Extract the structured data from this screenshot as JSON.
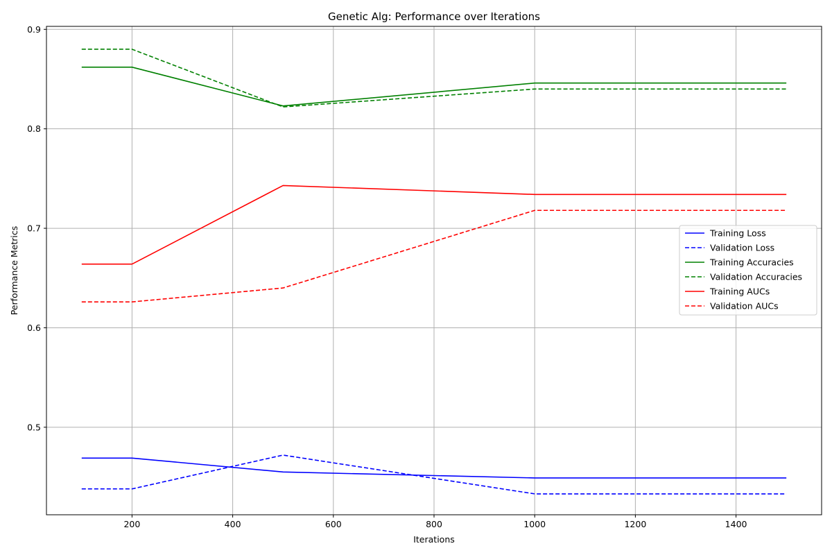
{
  "chart_data": {
    "type": "line",
    "title": "Genetic Alg: Performance over Iterations",
    "xlabel": "Iterations",
    "ylabel": "Performance Metrics",
    "xlim": [
      30,
      1570
    ],
    "ylim": [
      0.412,
      0.903
    ],
    "xticks": [
      200,
      400,
      600,
      800,
      1000,
      1200,
      1400
    ],
    "yticks": [
      0.5,
      0.6,
      0.7,
      0.8,
      0.9
    ],
    "grid": true,
    "legend_position": "center-right",
    "x": [
      100,
      200,
      500,
      1000,
      1500
    ],
    "series": [
      {
        "name": "Training Loss",
        "color": "#0000ff",
        "dash": "solid",
        "values": [
          0.469,
          0.469,
          0.455,
          0.449,
          0.449
        ]
      },
      {
        "name": "Validation Loss",
        "color": "#0000ff",
        "dash": "dashed",
        "values": [
          0.438,
          0.438,
          0.472,
          0.433,
          0.433
        ]
      },
      {
        "name": "Training Accuracies",
        "color": "#008000",
        "dash": "solid",
        "values": [
          0.862,
          0.862,
          0.823,
          0.846,
          0.846
        ]
      },
      {
        "name": "Validation Accuracies",
        "color": "#008000",
        "dash": "dashed",
        "values": [
          0.88,
          0.88,
          0.822,
          0.84,
          0.84
        ]
      },
      {
        "name": "Training AUCs",
        "color": "#ff0000",
        "dash": "solid",
        "values": [
          0.664,
          0.664,
          0.743,
          0.734,
          0.734
        ]
      },
      {
        "name": "Validation AUCs",
        "color": "#ff0000",
        "dash": "dashed",
        "values": [
          0.626,
          0.626,
          0.64,
          0.718,
          0.718
        ]
      }
    ]
  }
}
